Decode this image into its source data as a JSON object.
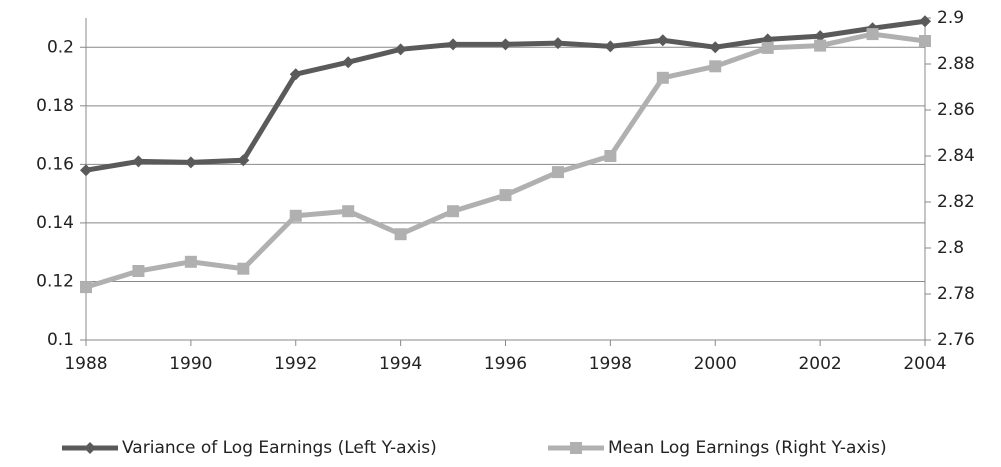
{
  "chart_data": {
    "type": "line",
    "x": [
      1988,
      1989,
      1990,
      1991,
      1992,
      1993,
      1994,
      1995,
      1996,
      1997,
      1998,
      1999,
      2000,
      2001,
      2002,
      2003,
      2004
    ],
    "xlim": [
      1988,
      2004
    ],
    "xticks": [
      1988,
      1990,
      1992,
      1994,
      1996,
      1998,
      2000,
      2002,
      2004
    ],
    "ylim": [
      0.1,
      0.21
    ],
    "yticks": [
      0.1,
      0.12,
      0.14,
      0.16,
      0.18,
      0.2
    ],
    "y2lim": [
      2.76,
      2.9
    ],
    "y2ticks": [
      2.76,
      2.78,
      2.8,
      2.82,
      2.84,
      2.86,
      2.88,
      2.9
    ],
    "grid": true,
    "legend": "bottom",
    "series": [
      {
        "name": "Variance of Log Earnings (Left Y-axis)",
        "color": "#5a5a5a",
        "marker": "diamond",
        "values": [
          0.158,
          0.161,
          0.1607,
          0.1614,
          0.1908,
          0.1949,
          0.1993,
          0.201,
          0.201,
          0.2014,
          0.2003,
          0.2024,
          0.2,
          0.2027,
          0.2038,
          0.2065,
          0.2089
        ]
      },
      {
        "name": "Mean Log Earnings (Right Y-axis)",
        "color": "#b0b0b0",
        "marker": "square",
        "axis": "y2",
        "values": [
          2.783,
          2.79,
          2.794,
          2.791,
          2.814,
          2.816,
          2.806,
          2.816,
          2.823,
          2.833,
          2.84,
          2.874,
          2.879,
          2.887,
          2.888,
          2.893,
          2.89
        ]
      }
    ]
  }
}
